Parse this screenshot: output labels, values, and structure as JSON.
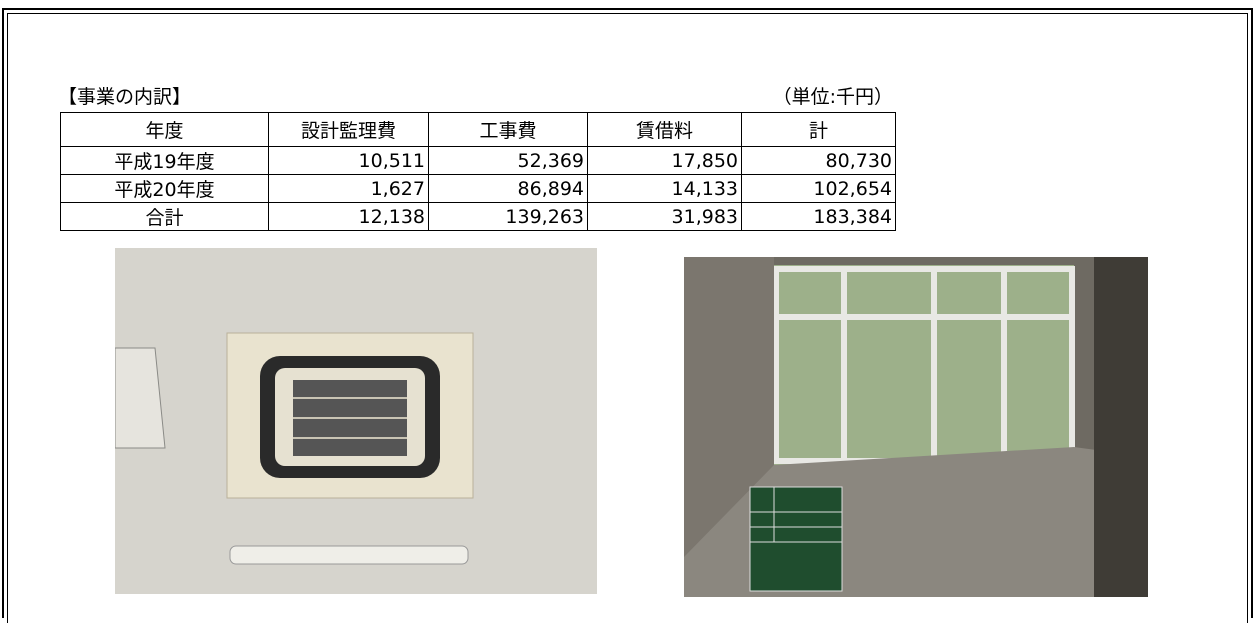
{
  "section": {
    "heading": "【事業の内訳】",
    "unit": "（単位:千円）"
  },
  "table": {
    "header": [
      "年度",
      "設計監理費",
      "工事費",
      "賃借料",
      "計"
    ],
    "rows": [
      [
        "平成19年度",
        "10,511",
        "52,369",
        "17,850",
        "80,730"
      ],
      [
        "平成20年度",
        "1,627",
        "86,894",
        "14,133",
        "102,654"
      ],
      [
        "合計",
        "12,138",
        "139,263",
        "31,983",
        "183,384"
      ]
    ]
  }
}
